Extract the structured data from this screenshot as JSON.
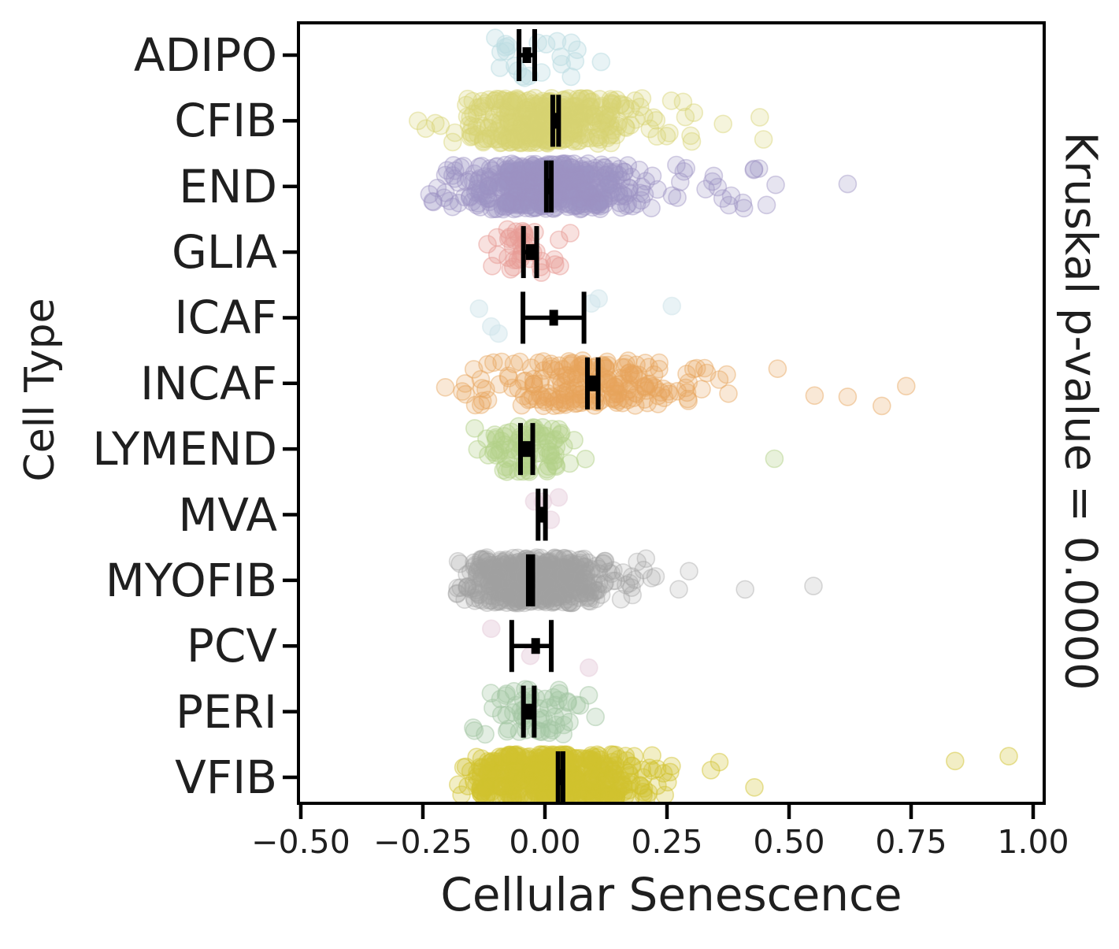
{
  "figure": {
    "background": "#ffffff",
    "text_color": "#1f1f1f",
    "spine_color": "#000000",
    "errorbar_color": "#000000"
  },
  "chart_data": {
    "type": "scatter",
    "subtype": "horizontal-strip-plot-with-mean-ci-errorbars",
    "title": "",
    "xlabel": "Cellular Senescence",
    "ylabel": "Cell Type",
    "right_label": "Kruskal p-value = 0.0000",
    "xlim": [
      -0.52,
      1.02
    ],
    "x_ticks": [
      -0.5,
      -0.25,
      0.0,
      0.25,
      0.5,
      0.75,
      1.0
    ],
    "x_tick_labels": [
      "−0.50",
      "−0.25",
      "0.00",
      "0.25",
      "0.50",
      "0.75",
      "1.00"
    ],
    "categories": [
      "ADIPO",
      "CFIB",
      "END",
      "GLIA",
      "ICAF",
      "INCAF",
      "LYMEND",
      "MVA",
      "MYOFIB",
      "PCV",
      "PERI",
      "VFIB"
    ],
    "grid": false,
    "legend": "none",
    "series": [
      {
        "label": "ADIPO",
        "mean": -0.037,
        "ci": [
          -0.053,
          -0.021
        ],
        "dot_color": "#bcdce2",
        "dot_alpha": 0.35,
        "n": 22,
        "center": -0.05,
        "sd": 0.05,
        "min": -0.16,
        "max": 0.13,
        "tail_frac": 0.1,
        "tail_scale": 0.06,
        "extra_points": [
          0.115
        ]
      },
      {
        "label": "CFIB",
        "mean": 0.022,
        "ci": [
          0.016,
          0.028
        ],
        "dot_color": "#d6d272",
        "dot_alpha": 0.25,
        "n": 430,
        "center": -0.01,
        "sd": 0.08,
        "min": -0.27,
        "max": 0.46,
        "tail_frac": 0.18,
        "tail_scale": 0.12,
        "extra_points": [
          -0.26,
          0.44
        ]
      },
      {
        "label": "END",
        "mean": 0.008,
        "ci": [
          0.003,
          0.013
        ],
        "dot_color": "#9d92c4",
        "dot_alpha": 0.25,
        "n": 520,
        "center": -0.01,
        "sd": 0.09,
        "min": -0.25,
        "max": 0.48,
        "tail_frac": 0.18,
        "tail_scale": 0.13,
        "extra_points": [
          0.62
        ]
      },
      {
        "label": "GLIA",
        "mean": -0.03,
        "ci": [
          -0.044,
          -0.017
        ],
        "dot_color": "#e79b95",
        "dot_alpha": 0.3,
        "n": 38,
        "center": -0.045,
        "sd": 0.05,
        "min": -0.16,
        "max": 0.11,
        "tail_frac": 0.12,
        "tail_scale": 0.05,
        "extra_points": []
      },
      {
        "label": "ICAF",
        "mean": 0.018,
        "ci": [
          -0.045,
          0.08
        ],
        "dot_color": "#cfe4ea",
        "dot_alpha": 0.45,
        "n": 0,
        "center": 0.0,
        "sd": 0.0,
        "min": -0.2,
        "max": 0.3,
        "tail_frac": 0.0,
        "tail_scale": 0.0,
        "extra_points": [
          -0.135,
          -0.11,
          -0.095,
          0.095,
          0.11,
          0.26
        ]
      },
      {
        "label": "INCAF",
        "mean": 0.098,
        "ci": [
          0.087,
          0.109
        ],
        "dot_color": "#e6a35c",
        "dot_alpha": 0.25,
        "n": 210,
        "center": 0.07,
        "sd": 0.11,
        "min": -0.25,
        "max": 0.56,
        "tail_frac": 0.15,
        "tail_scale": 0.12,
        "extra_points": [
          0.62,
          0.69,
          0.74
        ]
      },
      {
        "label": "LYMEND",
        "mean": -0.038,
        "ci": [
          -0.05,
          -0.025
        ],
        "dot_color": "#b3d189",
        "dot_alpha": 0.3,
        "n": 85,
        "center": -0.04,
        "sd": 0.055,
        "min": -0.18,
        "max": 0.14,
        "tail_frac": 0.1,
        "tail_scale": 0.06,
        "extra_points": [
          0.47
        ]
      },
      {
        "label": "MVA",
        "mean": -0.007,
        "ci": [
          -0.014,
          0.001
        ],
        "dot_color": "#e8cfdd",
        "dot_alpha": 0.5,
        "n": 0,
        "center": 0.0,
        "sd": 0.0,
        "min": -0.05,
        "max": 0.05,
        "tail_frac": 0.0,
        "tail_scale": 0.0,
        "extra_points": [
          -0.022,
          -0.004,
          0.012,
          0.028
        ]
      },
      {
        "label": "MYOFIB",
        "mean": -0.029,
        "ci": [
          -0.034,
          -0.025
        ],
        "dot_color": "#a2a2a2",
        "dot_alpha": 0.2,
        "n": 500,
        "center": -0.035,
        "sd": 0.075,
        "min": -0.19,
        "max": 0.33,
        "tail_frac": 0.15,
        "tail_scale": 0.1,
        "extra_points": [
          0.41,
          0.55
        ]
      },
      {
        "label": "PCV",
        "mean": -0.019,
        "ci": [
          -0.068,
          0.013
        ],
        "dot_color": "#e8cfdd",
        "dot_alpha": 0.5,
        "n": 0,
        "center": 0.0,
        "sd": 0.0,
        "min": -0.15,
        "max": 0.15,
        "tail_frac": 0.0,
        "tail_scale": 0.0,
        "extra_points": [
          -0.11,
          -0.03,
          0.09
        ]
      },
      {
        "label": "PERI",
        "mean": -0.034,
        "ci": [
          -0.044,
          -0.022
        ],
        "dot_color": "#a3c6a3",
        "dot_alpha": 0.3,
        "n": 58,
        "center": -0.045,
        "sd": 0.055,
        "min": -0.19,
        "max": 0.13,
        "tail_frac": 0.1,
        "tail_scale": 0.06,
        "extra_points": []
      },
      {
        "label": "VFIB",
        "mean": 0.032,
        "ci": [
          0.027,
          0.037
        ],
        "dot_color": "#d2c32e",
        "dot_alpha": 0.28,
        "n": 480,
        "center": 0.0,
        "sd": 0.09,
        "min": -0.18,
        "max": 0.52,
        "tail_frac": 0.15,
        "tail_scale": 0.1,
        "extra_points": [
          0.84,
          0.95
        ]
      }
    ]
  }
}
